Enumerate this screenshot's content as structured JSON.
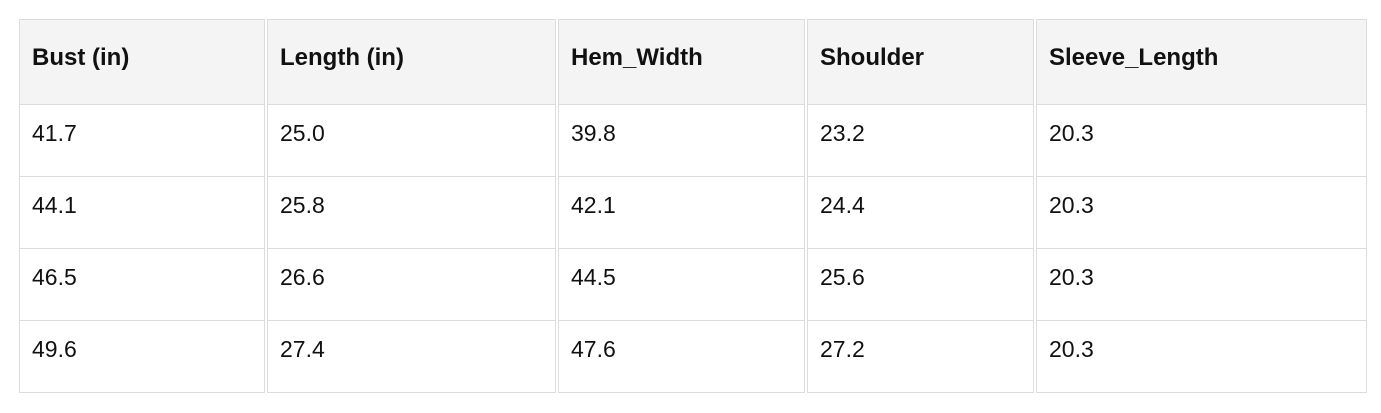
{
  "table": {
    "headers": [
      "Bust (in)",
      "Length (in)",
      "Hem_Width",
      "Shoulder",
      "Sleeve_Length"
    ],
    "rows": [
      [
        "41.7",
        "25.0",
        "39.8",
        "23.2",
        "20.3"
      ],
      [
        "44.1",
        "25.8",
        "42.1",
        "24.4",
        "20.3"
      ],
      [
        "46.5",
        "26.6",
        "44.5",
        "25.6",
        "20.3"
      ],
      [
        "49.6",
        "27.4",
        "47.6",
        "27.2",
        "20.3"
      ]
    ]
  }
}
